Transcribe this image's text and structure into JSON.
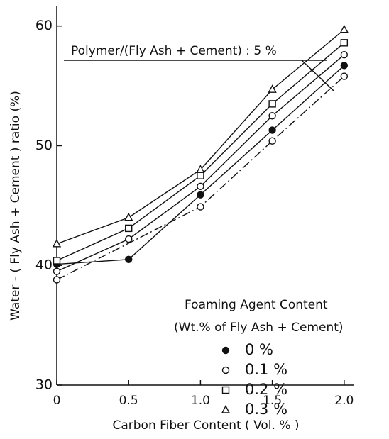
{
  "chart_data": {
    "type": "line",
    "xlabel": "Carbon Fiber Content ( Vol. % )",
    "ylabel": "Water - ( Fly Ash + Cement ) ratio (%)",
    "annotation": "Polymer/(Fly Ash + Cement) : 5 %",
    "legend_title": [
      "Foaming Agent Content",
      "(Wt.% of Fly Ash + Cement)"
    ],
    "legend": "lower right",
    "color": "#111111",
    "x": [
      0,
      0.5,
      1.0,
      1.5,
      2.0
    ],
    "xlim": [
      0,
      2.07
    ],
    "xticks": [
      0,
      0.5,
      {
        "value": 1,
        "label": "1.0"
      },
      1.5,
      {
        "value": 2,
        "label": "2.0"
      }
    ],
    "ylim": [
      30,
      61.7
    ],
    "yticks": [
      30,
      40,
      50,
      60
    ],
    "series": [
      {
        "name": "0 %",
        "marker": "circle-filled",
        "values": [
          40.1,
          40.5,
          45.9,
          51.3,
          56.7
        ]
      },
      {
        "name": "0.1 %",
        "marker": "circle-open",
        "values": [
          39.5,
          42.2,
          46.6,
          52.5,
          57.6
        ]
      },
      {
        "name": "0.2 %",
        "marker": "square-open",
        "values": [
          40.4,
          43.1,
          47.5,
          53.5,
          58.6
        ]
      },
      {
        "name": "0.3 %",
        "marker": "triangle-open",
        "values": [
          41.8,
          44.0,
          48.0,
          54.7,
          59.7
        ]
      },
      {
        "marker": "circle-open",
        "dash": "dashdot",
        "x": [
          0,
          1.0,
          1.5,
          2.0
        ],
        "values": [
          38.8,
          44.9,
          50.4,
          55.8
        ]
      }
    ]
  }
}
